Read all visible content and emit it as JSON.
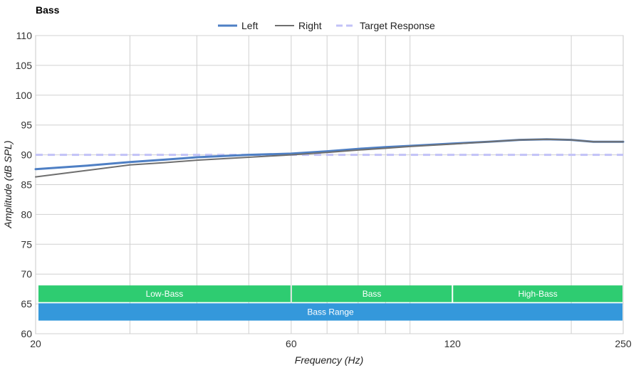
{
  "chart_data": {
    "type": "line",
    "title": "Bass",
    "xlabel": "Frequency (Hz)",
    "ylabel": "Amplitude (dB SPL)",
    "x_scale": "log",
    "xlim": [
      20,
      250
    ],
    "ylim": [
      60,
      110
    ],
    "x_ticks": [
      20,
      60,
      120,
      250
    ],
    "y_ticks": [
      60,
      65,
      70,
      75,
      80,
      85,
      90,
      95,
      100,
      105,
      110
    ],
    "grid": true,
    "legend_position": "top-center",
    "series": [
      {
        "name": "Left",
        "color": "#4e7fc4",
        "style": "solid",
        "x": [
          20,
          25,
          30,
          35,
          40,
          50,
          60,
          70,
          80,
          90,
          100,
          120,
          140,
          160,
          180,
          200,
          220,
          250
        ],
        "y": [
          87.6,
          88.2,
          88.8,
          89.2,
          89.6,
          90.0,
          90.2,
          90.6,
          91.0,
          91.3,
          91.5,
          91.9,
          92.2,
          92.5,
          92.6,
          92.5,
          92.2,
          92.2
        ]
      },
      {
        "name": "Right",
        "color": "#6f6f6f",
        "style": "solid",
        "x": [
          20,
          25,
          30,
          35,
          40,
          50,
          60,
          70,
          80,
          90,
          100,
          120,
          140,
          160,
          180,
          200,
          220,
          250
        ],
        "y": [
          86.3,
          87.4,
          88.3,
          88.7,
          89.1,
          89.6,
          90.0,
          90.4,
          90.8,
          91.1,
          91.4,
          91.8,
          92.2,
          92.5,
          92.6,
          92.5,
          92.2,
          92.2
        ]
      },
      {
        "name": "Target Response",
        "color": "#c2c2f7",
        "style": "dashed",
        "x": [
          20,
          250
        ],
        "y": [
          90,
          90
        ]
      }
    ],
    "bands": [
      {
        "label": "Low-Bass",
        "from": 20,
        "to": 60,
        "color": "#2ecc71"
      },
      {
        "label": "Bass",
        "from": 60,
        "to": 120,
        "color": "#2ecc71"
      },
      {
        "label": "High-Bass",
        "from": 120,
        "to": 250,
        "color": "#2ecc71"
      },
      {
        "label": "Bass Range",
        "from": 20,
        "to": 250,
        "color": "#3498db"
      }
    ]
  }
}
